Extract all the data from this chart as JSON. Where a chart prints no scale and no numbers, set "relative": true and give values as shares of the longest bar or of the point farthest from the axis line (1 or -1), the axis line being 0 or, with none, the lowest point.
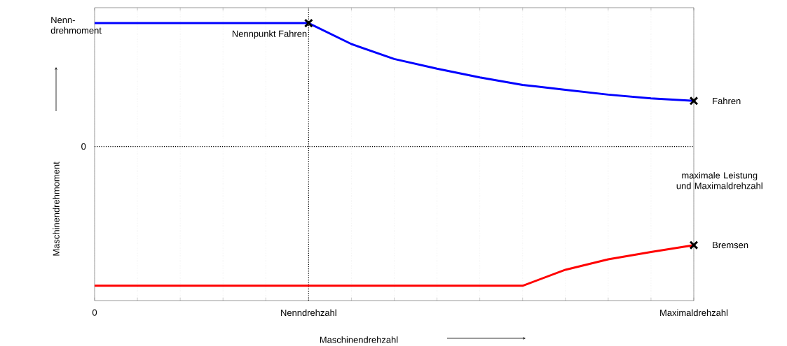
{
  "chart_data": {
    "type": "line",
    "relative": true,
    "xlabel": "Maschinendrehzahl",
    "ylabel": "Maschinendrehmoment",
    "categories": [
      "0",
      null,
      null,
      null,
      null,
      "Nenndrehzahl",
      null,
      null,
      null,
      null,
      null,
      null,
      null,
      null,
      "Maximaldrehzahl"
    ],
    "grid": "x",
    "ref_lines": [
      {
        "axis": "y",
        "value": 0,
        "label": "0",
        "color": "#000000",
        "line_style": "dotted"
      },
      {
        "axis": "x",
        "value": "Nenndrehzahl",
        "color": "#000000",
        "line_style": "dotted"
      }
    ],
    "series": [
      {
        "color": "#0000ff",
        "marker": "none",
        "values": [
          0.885,
          0.885,
          0.885,
          0.885,
          0.885,
          0.885,
          0.735,
          0.628,
          0.558,
          0.496,
          0.442,
          0.407,
          0.372,
          0.345,
          0.327
        ]
      },
      {
        "color": "#ff0000",
        "marker": "none",
        "values": [
          -1,
          -1,
          -1,
          -1,
          -1,
          -1,
          -1,
          -1,
          -1,
          -1,
          -1,
          -0.885,
          -0.81,
          -0.757,
          -0.708
        ]
      },
      {
        "type": "scatter",
        "color": "#000000",
        "marker": "cross",
        "x": [
          "Nenndrehzahl",
          "Maximaldrehzahl",
          "Maximaldrehzahl"
        ],
        "values": [
          0.885,
          0.327,
          -0.708
        ]
      }
    ],
    "annotations": [
      {
        "text": "Nennpunkt Fahren",
        "x": "Nenndrehzahl",
        "y": 0.885
      },
      {
        "text": "Fahren",
        "x": "Maximaldrehzahl",
        "y": 0.327
      },
      {
        "text": "Bremsen",
        "x": "Maximaldrehzahl",
        "y": -0.708
      },
      "maximale Leistung und Maximaldrehzahl",
      "Nenn-drehmoment"
    ]
  }
}
